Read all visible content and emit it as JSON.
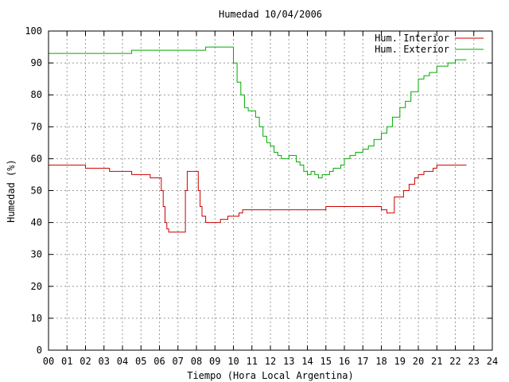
{
  "chart_data": {
    "type": "line",
    "title": "Humedad 10/04/2006",
    "xlabel": "Tiempo (Hora Local Argentina)",
    "ylabel": "Humedad (%)",
    "xlim": [
      0,
      24
    ],
    "ylim": [
      0,
      100
    ],
    "x_ticks": [
      "00",
      "01",
      "02",
      "03",
      "04",
      "05",
      "06",
      "07",
      "08",
      "09",
      "10",
      "11",
      "12",
      "13",
      "14",
      "15",
      "16",
      "17",
      "18",
      "19",
      "20",
      "21",
      "22",
      "23",
      "24"
    ],
    "y_ticks": [
      "0",
      "10",
      "20",
      "30",
      "40",
      "50",
      "60",
      "70",
      "80",
      "90",
      "100"
    ],
    "grid": true,
    "legend_position": "top-right",
    "series": [
      {
        "name": "Hum. Interior",
        "color": "#cc0000",
        "x": [
          0.0,
          0.5,
          1.0,
          1.5,
          2.0,
          2.5,
          3.0,
          3.3,
          3.6,
          4.0,
          4.5,
          5.0,
          5.5,
          6.0,
          6.1,
          6.2,
          6.3,
          6.4,
          6.5,
          6.7,
          7.0,
          7.3,
          7.4,
          7.5,
          7.7,
          8.0,
          8.1,
          8.2,
          8.3,
          8.5,
          8.7,
          9.0,
          9.3,
          9.5,
          9.7,
          10.0,
          10.3,
          10.5,
          11.0,
          11.5,
          12.0,
          12.5,
          13.0,
          13.5,
          14.0,
          14.5,
          15.0,
          15.5,
          16.0,
          16.5,
          17.0,
          17.5,
          18.0,
          18.3,
          18.5,
          18.7,
          19.0,
          19.2,
          19.5,
          19.8,
          20.0,
          20.3,
          20.5,
          20.8,
          21.0,
          21.5,
          22.0,
          22.3,
          22.6
        ],
        "values": [
          58,
          58,
          58,
          58,
          57,
          57,
          57,
          56,
          56,
          56,
          55,
          55,
          54,
          54,
          50,
          45,
          40,
          38,
          37,
          37,
          37,
          37,
          50,
          56,
          56,
          56,
          50,
          45,
          42,
          40,
          40,
          40,
          41,
          41,
          42,
          42,
          43,
          44,
          44,
          44,
          44,
          44,
          44,
          44,
          44,
          44,
          45,
          45,
          45,
          45,
          45,
          45,
          44,
          43,
          43,
          48,
          48,
          50,
          52,
          54,
          55,
          56,
          56,
          57,
          58,
          58,
          58,
          58,
          58
        ]
      },
      {
        "name": "Hum. Exterior",
        "color": "#00aa00",
        "x": [
          0.0,
          0.5,
          1.0,
          1.5,
          2.0,
          2.5,
          3.0,
          3.5,
          4.0,
          4.5,
          5.0,
          5.5,
          6.0,
          6.5,
          7.0,
          7.5,
          8.0,
          8.5,
          9.0,
          9.5,
          9.8,
          10.0,
          10.2,
          10.4,
          10.6,
          10.8,
          11.0,
          11.2,
          11.4,
          11.6,
          11.8,
          12.0,
          12.2,
          12.4,
          12.6,
          12.8,
          13.0,
          13.2,
          13.4,
          13.6,
          13.8,
          14.0,
          14.2,
          14.4,
          14.6,
          14.8,
          15.0,
          15.2,
          15.4,
          15.6,
          15.8,
          16.0,
          16.3,
          16.6,
          17.0,
          17.3,
          17.6,
          18.0,
          18.3,
          18.6,
          19.0,
          19.3,
          19.6,
          20.0,
          20.3,
          20.6,
          21.0,
          21.3,
          21.6,
          22.0,
          22.3,
          22.6
        ],
        "values": [
          93,
          93,
          93,
          93,
          93,
          93,
          93,
          93,
          93,
          94,
          94,
          94,
          94,
          94,
          94,
          94,
          94,
          95,
          95,
          95,
          95,
          90,
          84,
          80,
          76,
          75,
          75,
          73,
          70,
          67,
          65,
          64,
          62,
          61,
          60,
          60,
          61,
          61,
          59,
          58,
          56,
          55,
          56,
          55,
          54,
          55,
          55,
          56,
          57,
          57,
          58,
          60,
          61,
          62,
          63,
          64,
          66,
          68,
          70,
          73,
          76,
          78,
          81,
          85,
          86,
          87,
          89,
          89,
          90,
          91,
          91,
          91
        ]
      }
    ]
  }
}
